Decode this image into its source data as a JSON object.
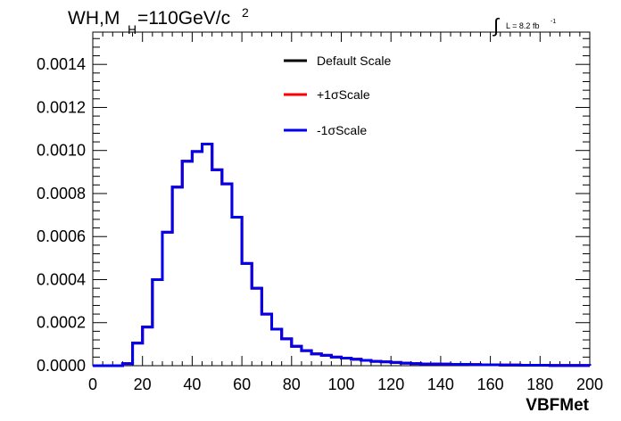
{
  "chart_data": {
    "type": "line",
    "title": "WH,M",
    "title_sub": "H",
    "title_rest": "=110GeV/c",
    "title_sup": "2",
    "lumi_symbol": "∫",
    "lumi_text": "L = 8.2 fb",
    "lumi_sup": "-1",
    "xlabel": "VBFMet",
    "ylabel": "",
    "xlim": [
      0,
      200
    ],
    "ylim": [
      0,
      0.00155
    ],
    "x_ticks": [
      0,
      20,
      40,
      60,
      80,
      100,
      120,
      140,
      160,
      180,
      200
    ],
    "x_tick_labels": [
      "0",
      "20",
      "40",
      "60",
      "80",
      "100",
      "120",
      "140",
      "160",
      "180",
      "200"
    ],
    "y_ticks": [
      0,
      0.0002,
      0.0004,
      0.0006,
      0.0008,
      0.001,
      0.0012,
      0.0014
    ],
    "y_tick_labels": [
      "0.0000",
      "0.0002",
      "0.0004",
      "0.0006",
      "0.0008",
      "0.0010",
      "0.0012",
      "0.0014"
    ],
    "grid": false,
    "legend_position": "top-center",
    "bin_edges": [
      0,
      4,
      8,
      12,
      16,
      20,
      24,
      28,
      32,
      36,
      40,
      44,
      48,
      52,
      56,
      60,
      64,
      68,
      72,
      76,
      80,
      84,
      88,
      92,
      96,
      100,
      104,
      108,
      112,
      116,
      120,
      124,
      128,
      132,
      136,
      140,
      144,
      148,
      152,
      156,
      160,
      164,
      168,
      172,
      176,
      180,
      184,
      188,
      192,
      196,
      200
    ],
    "series": [
      {
        "name": "Default Scale",
        "color": "#000000",
        "values": [
          0,
          0,
          0,
          1e-05,
          0.000105,
          0.00018,
          0.0004,
          0.00062,
          0.00083,
          0.00095,
          0.000995,
          0.00103,
          0.00091,
          0.000845,
          0.00069,
          0.000475,
          0.00036,
          0.00024,
          0.00017,
          0.000125,
          9e-05,
          7e-05,
          5.5e-05,
          4.8e-05,
          4e-05,
          3.5e-05,
          3e-05,
          2.5e-05,
          2e-05,
          1.8e-05,
          1.5e-05,
          1.2e-05,
          1e-05,
          8e-06,
          8e-06,
          7e-06,
          6e-06,
          6e-06,
          5e-06,
          4e-06,
          4e-06,
          3e-06,
          3e-06,
          2e-06,
          2e-06,
          2e-06,
          1e-06,
          1e-06,
          1e-06,
          1e-06
        ]
      },
      {
        "name": "+1σScale",
        "color": "#ff0000",
        "values": [
          0,
          0,
          0,
          1e-05,
          0.000105,
          0.00018,
          0.0004,
          0.00062,
          0.00083,
          0.00095,
          0.000995,
          0.00103,
          0.00091,
          0.000845,
          0.00069,
          0.000475,
          0.00036,
          0.00024,
          0.00017,
          0.000125,
          9e-05,
          7e-05,
          5.5e-05,
          4.8e-05,
          4e-05,
          3.5e-05,
          3e-05,
          2.5e-05,
          2e-05,
          1.8e-05,
          1.5e-05,
          1.2e-05,
          1e-05,
          8e-06,
          8e-06,
          7e-06,
          6e-06,
          6e-06,
          5e-06,
          4e-06,
          4e-06,
          3e-06,
          3e-06,
          2e-06,
          2e-06,
          2e-06,
          1e-06,
          1e-06,
          1e-06,
          1e-06
        ]
      },
      {
        "name": "-1σScale",
        "color": "#0000ee",
        "values": [
          0,
          0,
          0,
          1e-05,
          0.000105,
          0.00018,
          0.0004,
          0.00062,
          0.00083,
          0.00095,
          0.000995,
          0.00103,
          0.00091,
          0.000845,
          0.00069,
          0.000475,
          0.00036,
          0.00024,
          0.00017,
          0.000125,
          9e-05,
          7e-05,
          5.5e-05,
          4.8e-05,
          4e-05,
          3.5e-05,
          3e-05,
          2.5e-05,
          2e-05,
          1.8e-05,
          1.5e-05,
          1.2e-05,
          1e-05,
          8e-06,
          8e-06,
          7e-06,
          6e-06,
          6e-06,
          5e-06,
          4e-06,
          4e-06,
          3e-06,
          3e-06,
          2e-06,
          2e-06,
          2e-06,
          1e-06,
          1e-06,
          1e-06,
          1e-06
        ]
      }
    ]
  }
}
